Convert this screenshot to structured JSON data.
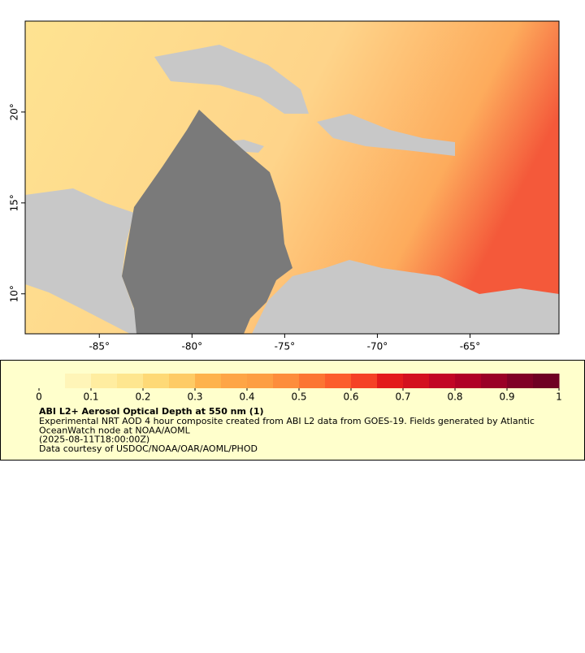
{
  "map": {
    "xlim": [
      -89,
      -60.2
    ],
    "ylim": [
      7.8,
      25
    ],
    "xticks": [
      {
        "value": -85,
        "label": "-85°"
      },
      {
        "value": -80,
        "label": "-80°"
      },
      {
        "value": -75,
        "label": "-75°"
      },
      {
        "value": -70,
        "label": "-70°"
      },
      {
        "value": -65,
        "label": "-65°"
      }
    ],
    "yticks": [
      {
        "value": 10,
        "label": "10°"
      },
      {
        "value": 15,
        "label": "15°"
      },
      {
        "value": 20,
        "label": "20°"
      }
    ]
  },
  "colorbar": {
    "lim": [
      0,
      1
    ],
    "ticks": [
      0,
      0.1,
      0.2,
      0.3,
      0.4,
      0.5,
      0.6,
      0.7,
      0.8,
      0.9,
      1
    ],
    "colors": [
      "#ffffcc",
      "#fff5b8",
      "#ffeda0",
      "#fee68f",
      "#fed976",
      "#fecb65",
      "#feb24c",
      "#fea546",
      "#fd9e43",
      "#fd8d3c",
      "#fc7533",
      "#fc5d2c",
      "#f54126",
      "#e31a1c",
      "#d3101f",
      "#c20525",
      "#b00026",
      "#9a0026",
      "#800026",
      "#6f0024"
    ]
  },
  "caption": {
    "title": "ABI L2+ Aerosol Optical Depth at 550 nm (1)",
    "lines": [
      "Experimental NRT AOD 4 hour composite created from ABI L2 data from GOES-19. Fields generated by Atlantic",
      "OceanWatch node at NOAA/AOML",
      "(2025-08-11T18:00:00Z)",
      "Data courtesy of USDOC/NOAA/OAR/AOML/PHOD"
    ]
  }
}
